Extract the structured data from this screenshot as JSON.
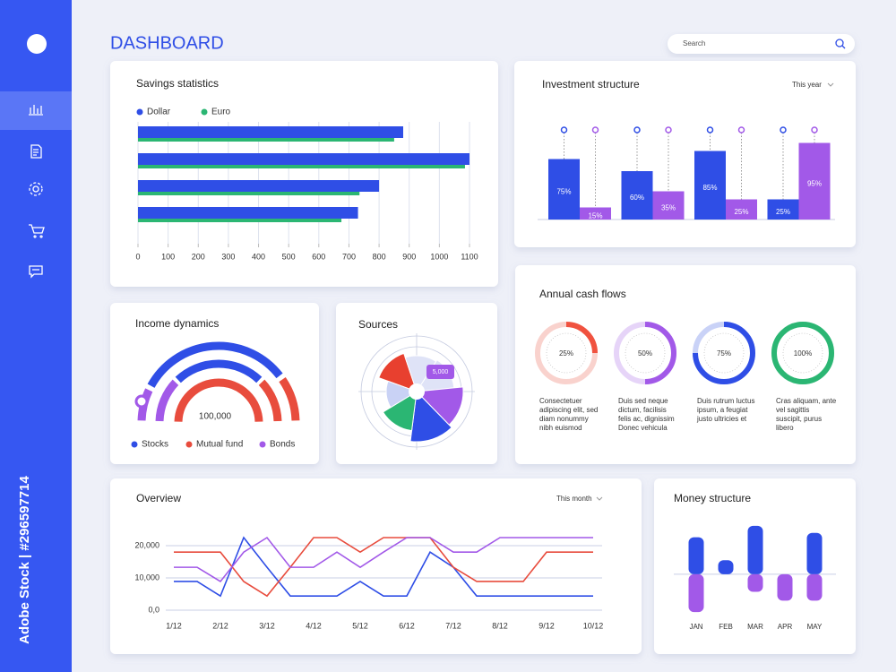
{
  "header": {
    "title": "DASHBOARD",
    "search_placeholder": "Search"
  },
  "watermark": "Adobe Stock | #296597714",
  "chart_data": [
    {
      "type": "hbar",
      "title": "Savings statistics",
      "categories": [
        null,
        null,
        null,
        null
      ],
      "series": [
        {
          "name": "Dollar",
          "color": "#2f4ee6",
          "values": [
            880,
            1100,
            800,
            730
          ]
        },
        {
          "name": "Euro",
          "color": "#2bb673",
          "values": [
            850,
            1085,
            735,
            675
          ]
        }
      ],
      "xlim": [
        0,
        1100
      ],
      "xticks": [
        0,
        100,
        200,
        300,
        400,
        500,
        600,
        700,
        800,
        900,
        1000,
        1100
      ],
      "grid": true
    },
    {
      "type": "grouped-bar",
      "title": "Investment structure",
      "dropdown": "This year",
      "categories": [
        null,
        null,
        null,
        null
      ],
      "series": [
        {
          "color": "#2f4ee6",
          "values": [
            75,
            60,
            85,
            25
          ],
          "value_labels": [
            "75%",
            "60%",
            "85%",
            "25%"
          ]
        },
        {
          "color": "#a259e8",
          "values": [
            15,
            35,
            25,
            95
          ],
          "value_labels": [
            "15%",
            "35%",
            "25%",
            "95%"
          ]
        }
      ],
      "ylim": [
        0,
        100
      ]
    },
    {
      "type": "ring-gauge",
      "title": "Income dynamics",
      "center_label": "100,000",
      "series": [
        {
          "name": "Stocks",
          "color": "#2f4ee6",
          "values": [
            65,
            50,
            0
          ]
        },
        {
          "name": "Mutual fund",
          "color": "#e84c3d",
          "values": [
            20,
            25,
            100
          ]
        },
        {
          "name": "Bonds",
          "color": "#a259e8",
          "values": [
            15,
            25,
            0
          ]
        }
      ]
    },
    {
      "type": "polar",
      "title": "Sources",
      "annotation": "5,000",
      "values": [
        45,
        40,
        42,
        52,
        56,
        44,
        34
      ],
      "colors": [
        "#e8402f",
        "#dfe3f7",
        "#dfe3f7",
        "#a259e8",
        "#2f4ee6",
        "#2bb673",
        "#c9d2f5"
      ]
    },
    {
      "type": "donut",
      "title": "Annual cash flows",
      "values": [
        25,
        50,
        75,
        100
      ],
      "value_labels": [
        "25%",
        "50%",
        "75%",
        "100%"
      ],
      "colors": [
        "#f0523f",
        "#a259e8",
        "#2f4ee6",
        "#2bb673"
      ],
      "track_colors": [
        "#f9d2cd",
        "#e6d4f8",
        "#c9d2f7",
        "#c9efdc"
      ],
      "descriptions": [
        [
          "Consectetuer",
          "adipiscing elit, sed",
          "diam nonummy",
          "nibh euismod"
        ],
        [
          "Duis sed neque",
          "dictum, facilisis",
          "felis ac, dignissim",
          "Donec vehicula"
        ],
        [
          "Duis rutrum luctus",
          "ipsum, a feugiat",
          "justo ultricies et"
        ],
        [
          "Cras aliquam, ante",
          "vel sagittis",
          "suscipit, purus",
          "libero"
        ]
      ]
    },
    {
      "type": "line",
      "title": "Overview",
      "dropdown": "This month",
      "categories": [
        "1/12",
        null,
        "2/12",
        null,
        "3/12",
        null,
        "4/12",
        null,
        "5/12",
        null,
        "6/12",
        null,
        "7/12",
        null,
        "8/12",
        null,
        "9/12",
        null,
        "10/12"
      ],
      "series": [
        {
          "color": "#2f4ee6",
          "values": [
            8900,
            8900,
            4400,
            22500,
            13300,
            4400,
            4400,
            4400,
            8900,
            4400,
            4400,
            18000,
            13300,
            4400,
            4400,
            4400,
            4400,
            4400,
            4400
          ]
        },
        {
          "color": "#e84c3d",
          "values": [
            18000,
            18000,
            18000,
            8900,
            4400,
            13300,
            22500,
            22500,
            18000,
            22500,
            22500,
            22500,
            13300,
            8900,
            8900,
            8900,
            18000,
            18000,
            18000
          ]
        },
        {
          "color": "#a259e8",
          "values": [
            13300,
            13300,
            8900,
            18000,
            22500,
            13300,
            13300,
            18000,
            13300,
            18000,
            22500,
            22500,
            18000,
            18000,
            22500,
            22500,
            22500,
            22500,
            22500
          ]
        }
      ],
      "ylim": [
        0,
        25000
      ],
      "yticks": [
        {
          "value": 0,
          "label": "0,0"
        },
        {
          "value": 10000,
          "label": "10,000"
        },
        {
          "value": 20000,
          "label": "20,000"
        }
      ],
      "grid": true
    },
    {
      "type": "diverging-bar",
      "title": "Money structure",
      "categories": [
        "JAN",
        "FEB",
        "MAR",
        "APR",
        "MAY"
      ],
      "series": [
        {
          "color": "#2f4ee6",
          "values": [
            42,
            16,
            55,
            0,
            47
          ]
        },
        {
          "color": "#a259e8",
          "values": [
            -43,
            0,
            -20,
            -30,
            -30
          ]
        }
      ],
      "ylim": [
        -50,
        60
      ]
    }
  ]
}
